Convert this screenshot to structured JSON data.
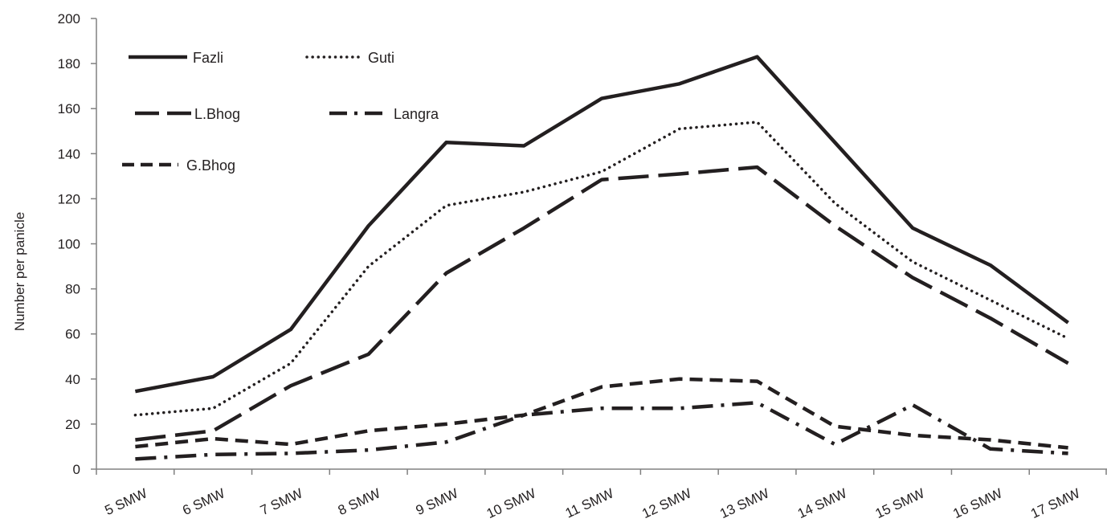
{
  "chart_data": {
    "type": "line",
    "title": "",
    "xlabel": "",
    "ylabel": "Number per panicle",
    "ylim": [
      0,
      200
    ],
    "yticks": [
      0,
      20,
      40,
      60,
      80,
      100,
      120,
      140,
      160,
      180,
      200
    ],
    "grid": false,
    "legend_position": "top-left",
    "categories": [
      "5 SMW",
      "6 SMW",
      "7 SMW",
      "8 SMW",
      "9 SMW",
      "10 SMW",
      "11 SMW",
      "12 SMW",
      "13 SMW",
      "14 SMW",
      "15 SMW",
      "16 SMW",
      "17 SMW"
    ],
    "series": [
      {
        "name": "Fazli",
        "style": "solid",
        "values": [
          34.5,
          41,
          62,
          108,
          145,
          143.5,
          164.5,
          171,
          183,
          145,
          107,
          90.5,
          65
        ]
      },
      {
        "name": "Guti",
        "style": "dotted",
        "values": [
          24,
          27,
          47,
          90,
          117,
          123,
          132,
          151,
          154,
          118,
          92,
          75,
          58
        ]
      },
      {
        "name": "L.Bhog",
        "style": "long-dash",
        "values": [
          13,
          17,
          37,
          51,
          87,
          107,
          128.5,
          131,
          134,
          108,
          85,
          67,
          47
        ]
      },
      {
        "name": "Langra",
        "style": "dash-dot",
        "values": [
          4.5,
          6.5,
          7,
          8.5,
          12,
          24,
          27,
          27,
          29.5,
          11,
          28.5,
          9,
          7
        ]
      },
      {
        "name": "G.Bhog",
        "style": "short-dash",
        "values": [
          10,
          13.5,
          11,
          17,
          20,
          24,
          36.5,
          40,
          39,
          19,
          15,
          13,
          9.5
        ]
      }
    ],
    "color": "#231f20"
  }
}
